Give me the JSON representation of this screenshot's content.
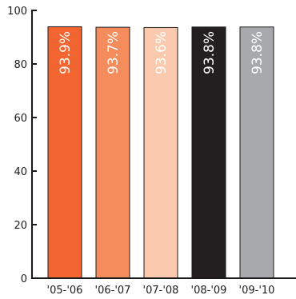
{
  "chart_data": {
    "type": "bar",
    "title": "",
    "xlabel": "",
    "ylabel": "",
    "categories": [
      "'05-'06",
      "'06-'07",
      "'07-'08",
      "'08-'09",
      "'09-'10"
    ],
    "values": [
      93.9,
      93.7,
      93.6,
      93.8,
      93.8
    ],
    "data_labels": [
      "93.9%",
      "93.7%",
      "93.6%",
      "93.8%",
      "93.8%"
    ],
    "bar_colors": [
      "#f26531",
      "#f58c5c",
      "#fbc9ae",
      "#231f20",
      "#a7a9ac"
    ],
    "ylim": [
      0,
      100
    ],
    "yticks": [
      0,
      20,
      40,
      60,
      80,
      100
    ],
    "grid": false,
    "legend": "none"
  }
}
